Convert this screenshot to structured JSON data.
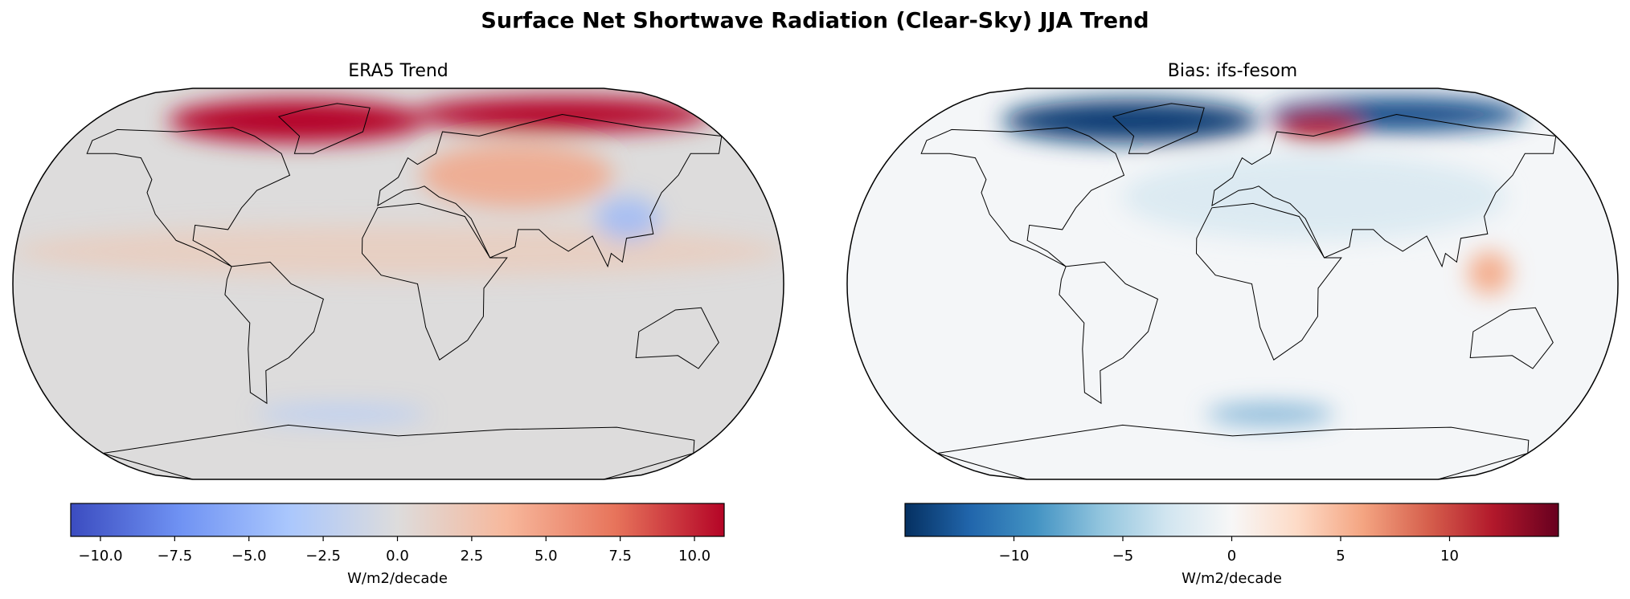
{
  "title": "Surface Net Shortwave Radiation (Clear-Sky) JJA Trend",
  "chart_data": [
    {
      "type": "map",
      "title": "ERA5 Trend",
      "colorbar": {
        "clim": [
          -11,
          11
        ],
        "label": "W/m2/decade",
        "ticks": [
          {
            "value": -10,
            "label": "−10.0"
          },
          {
            "value": -7.5,
            "label": "−7.5"
          },
          {
            "value": -5,
            "label": "−5.0"
          },
          {
            "value": -2.5,
            "label": "−2.5"
          },
          {
            "value": 0,
            "label": "0.0"
          },
          2.5,
          {
            "value": 5,
            "label": "5.0"
          },
          7.5,
          {
            "value": 10,
            "label": "10.0"
          }
        ],
        "cmap": [
          "#3b4cc0",
          "#6f92f3",
          "#aac7fd",
          "#dddcdc",
          "#f7b89c",
          "#e7745b",
          "#b40426"
        ]
      }
    },
    {
      "type": "map",
      "title": "Bias: ifs-fesom",
      "colorbar": {
        "clim": [
          -15,
          15
        ],
        "label": "W/m2/decade",
        "ticks": [
          {
            "value": -10,
            "label": "−10"
          },
          {
            "value": -5,
            "label": "−5"
          },
          0,
          5,
          10
        ],
        "cmap": [
          "#053061",
          "#2166ac",
          "#4393c3",
          "#92c5de",
          "#d1e5f0",
          "#f7f7f7",
          "#fddbc7",
          "#f4a582",
          "#d6604d",
          "#b2182b",
          "#67001f"
        ]
      }
    }
  ]
}
